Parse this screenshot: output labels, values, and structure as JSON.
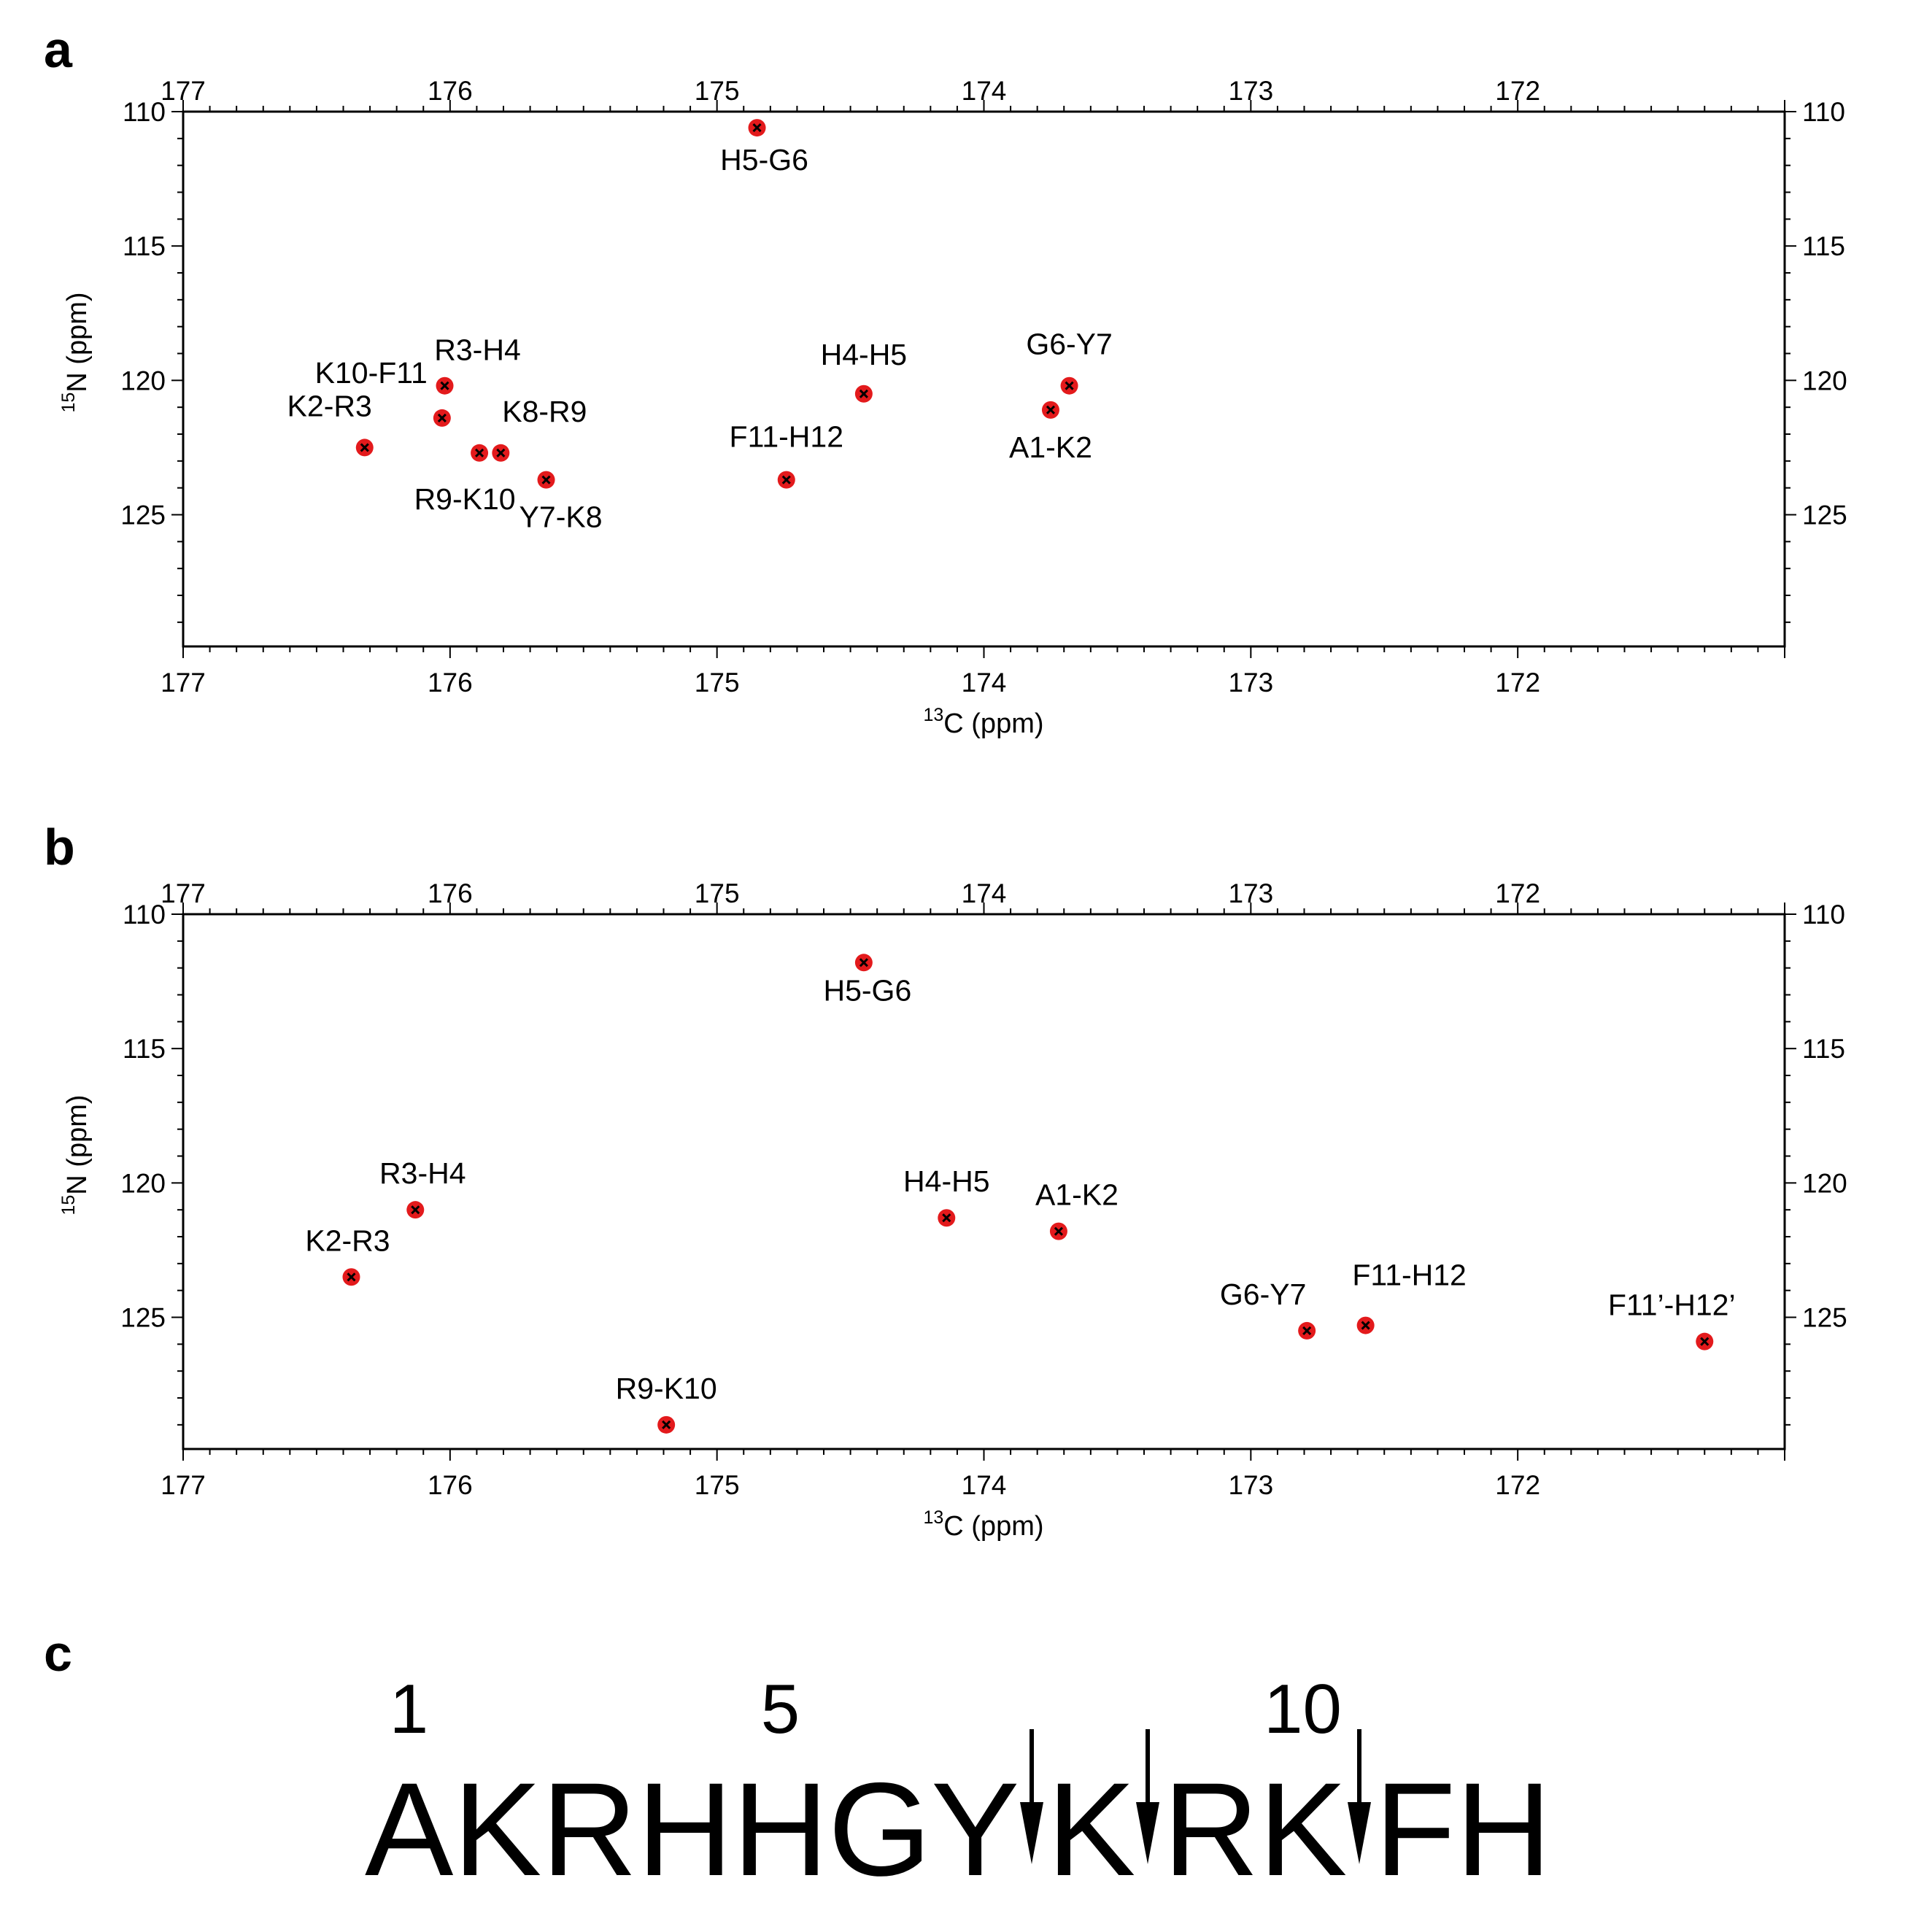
{
  "chart_data": [
    {
      "type": "scatter",
      "panel": "a",
      "xlabel_sup": "13",
      "xlabel_main": "C  (ppm)",
      "ylabel_sup": "15",
      "ylabel_main": "N  (ppm)",
      "xlim": [
        177,
        171
      ],
      "ylim": [
        110,
        129.9
      ],
      "x_ticks": [
        "177",
        "176",
        "175",
        "174",
        "173",
        "172"
      ],
      "y_ticks": [
        "110",
        "115",
        "120",
        "125"
      ],
      "points": [
        {
          "label": "H5-G6",
          "x": 174.85,
          "y": 110.6
        },
        {
          "label": "R3-H4",
          "x": 176.02,
          "y": 120.2
        },
        {
          "label": "K10-F11",
          "x": 176.03,
          "y": 121.4
        },
        {
          "label": "K2-R3",
          "x": 176.32,
          "y": 122.5
        },
        {
          "label": "R9-K10",
          "x": 175.89,
          "y": 122.7
        },
        {
          "label": "K8-R9",
          "x": 175.81,
          "y": 122.7
        },
        {
          "label": "Y7-K8",
          "x": 175.64,
          "y": 123.7
        },
        {
          "label": "F11-H12",
          "x": 174.74,
          "y": 123.7
        },
        {
          "label": "H4-H5",
          "x": 174.45,
          "y": 120.5
        },
        {
          "label": "G6-Y7",
          "x": 173.68,
          "y": 120.2
        },
        {
          "label": "A1-K2",
          "x": 173.75,
          "y": 121.1
        }
      ]
    },
    {
      "type": "scatter",
      "panel": "b",
      "xlabel_sup": "13",
      "xlabel_main": "C  (ppm)",
      "ylabel_sup": "15",
      "ylabel_main": "N  (ppm)",
      "xlim": [
        177,
        171
      ],
      "ylim": [
        110,
        129.9
      ],
      "x_ticks": [
        "177",
        "176",
        "175",
        "174",
        "173",
        "172"
      ],
      "y_ticks": [
        "110",
        "115",
        "120",
        "125"
      ],
      "points": [
        {
          "label": "H5-G6",
          "x": 174.45,
          "y": 111.8
        },
        {
          "label": "R3-H4",
          "x": 176.13,
          "y": 121.0
        },
        {
          "label": "K2-R3",
          "x": 176.37,
          "y": 123.5
        },
        {
          "label": "H4-H5",
          "x": 174.14,
          "y": 121.3
        },
        {
          "label": "A1-K2",
          "x": 173.72,
          "y": 121.8
        },
        {
          "label": "R9-K10",
          "x": 175.19,
          "y": 129.0
        },
        {
          "label": "G6-Y7",
          "x": 172.79,
          "y": 125.5
        },
        {
          "label": "F11-H12",
          "x": 172.57,
          "y": 125.3
        },
        {
          "label": "F11’-H12’",
          "x": 171.3,
          "y": 125.9,
          "color": "#e31a1c"
        }
      ]
    }
  ],
  "panels": {
    "a": {
      "letter": "a"
    },
    "b": {
      "letter": "b"
    },
    "c": {
      "letter": "c"
    }
  },
  "sequence": {
    "residues": [
      "A",
      "K",
      "R",
      "H",
      "H",
      "G",
      "Y",
      "K",
      "R",
      "K",
      "F",
      "H"
    ],
    "numbers": [
      {
        "text": "1",
        "index": 0
      },
      {
        "text": "5",
        "index": 4
      },
      {
        "text": "10",
        "index": 9
      }
    ],
    "cleavage_after": [
      6,
      7,
      9
    ]
  },
  "colors": {
    "peak": "#e31a1c",
    "cross": "#000000",
    "highlight_label": "#e31a1c",
    "axis": "#000000"
  }
}
